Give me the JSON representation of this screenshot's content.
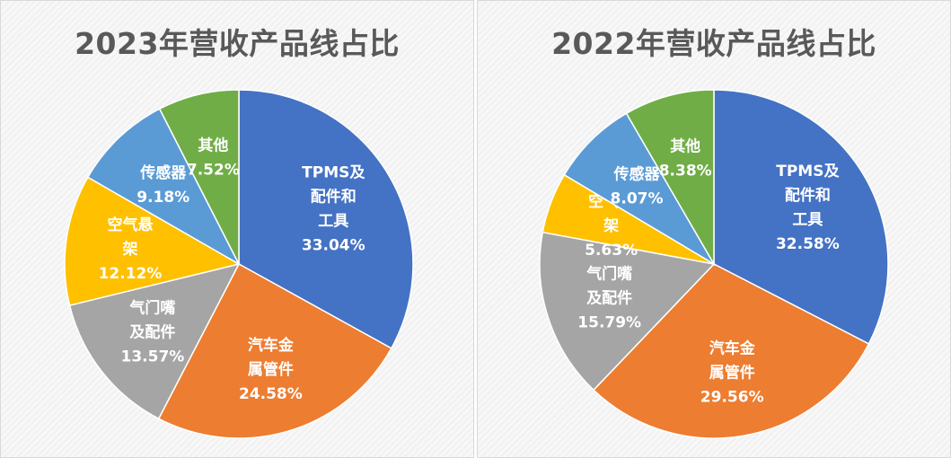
{
  "chart_data": [
    {
      "type": "pie",
      "title": "2023年营收产品线占比",
      "slices": [
        {
          "label_lines": [
            "TPMS及",
            "配件和",
            "工具"
          ],
          "value": 33.04,
          "value_label": "33.04%",
          "color": "#4472c4"
        },
        {
          "label_lines": [
            "汽车金",
            "属管件"
          ],
          "value": 24.58,
          "value_label": "24.58%",
          "color": "#ed7d31"
        },
        {
          "label_lines": [
            "气门嘴",
            "及配件"
          ],
          "value": 13.57,
          "value_label": "13.57%",
          "color": "#a5a5a5"
        },
        {
          "label_lines": [
            "空气悬",
            "架"
          ],
          "value": 12.12,
          "value_label": "12.12%",
          "color": "#ffc000"
        },
        {
          "label_lines": [
            "传感器"
          ],
          "value": 9.18,
          "value_label": "9.18%",
          "color": "#5b9bd5"
        },
        {
          "label_lines": [
            "其他"
          ],
          "value": 7.52,
          "value_label": "7.52%",
          "color": "#70ad47"
        }
      ]
    },
    {
      "type": "pie",
      "title": "2022年营收产品线占比",
      "slices": [
        {
          "label_lines": [
            "TPMS及",
            "配件和",
            "工具"
          ],
          "value": 32.58,
          "value_label": "32.58%",
          "color": "#4472c4"
        },
        {
          "label_lines": [
            "汽车金",
            "属管件"
          ],
          "value": 29.56,
          "value_label": "29.56%",
          "color": "#ed7d31"
        },
        {
          "label_lines": [
            "气门嘴",
            "及配件"
          ],
          "value": 15.79,
          "value_label": "15.79%",
          "color": "#a5a5a5"
        },
        {
          "label_lines": [
            "空气悬",
            "架"
          ],
          "value": 5.63,
          "value_label": "5.63%",
          "color": "#ffc000"
        },
        {
          "label_lines": [
            "传感器"
          ],
          "value": 8.07,
          "value_label": "8.07%",
          "color": "#5b9bd5"
        },
        {
          "label_lines": [
            "其他"
          ],
          "value": 8.38,
          "value_label": "8.38%",
          "color": "#70ad47"
        }
      ]
    }
  ]
}
